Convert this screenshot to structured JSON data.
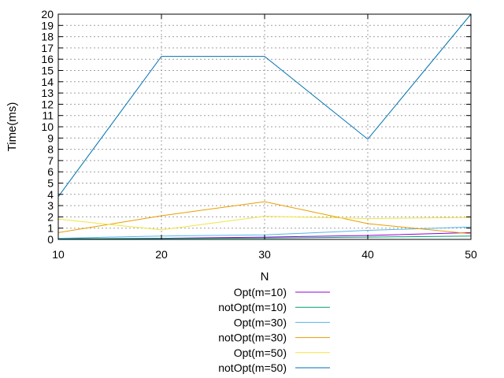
{
  "chart_data": {
    "type": "line",
    "title": "",
    "xlabel": "N",
    "ylabel": "Time(ms)",
    "x": [
      10,
      20,
      30,
      40,
      50
    ],
    "xlim": [
      10,
      50
    ],
    "ylim": [
      0,
      20
    ],
    "xticks": [
      10,
      20,
      30,
      40,
      50
    ],
    "yticks": [
      0,
      1,
      2,
      3,
      4,
      5,
      6,
      7,
      8,
      9,
      10,
      11,
      12,
      13,
      14,
      15,
      16,
      17,
      18,
      19,
      20
    ],
    "grid": true,
    "legend_position": "bottom",
    "series": [
      {
        "name": "Opt(m=10)",
        "color": "#9400d3",
        "values": [
          0.05,
          0.1,
          0.2,
          0.35,
          0.6
        ]
      },
      {
        "name": "notOpt(m=10)",
        "color": "#009e73",
        "values": [
          0.05,
          0.08,
          0.12,
          0.2,
          0.3
        ]
      },
      {
        "name": "Opt(m=30)",
        "color": "#56b4e9",
        "values": [
          0.1,
          0.3,
          0.4,
          0.8,
          1.1
        ]
      },
      {
        "name": "notOpt(m=30)",
        "color": "#e69f00",
        "values": [
          0.6,
          2.1,
          3.35,
          1.4,
          0.5
        ]
      },
      {
        "name": "Opt(m=50)",
        "color": "#f0e442",
        "values": [
          1.8,
          0.85,
          2.05,
          1.85,
          1.95
        ]
      },
      {
        "name": "notOpt(m=50)",
        "color": "#0072b2",
        "values": [
          3.8,
          16.25,
          16.25,
          8.9,
          20.0
        ]
      }
    ]
  }
}
